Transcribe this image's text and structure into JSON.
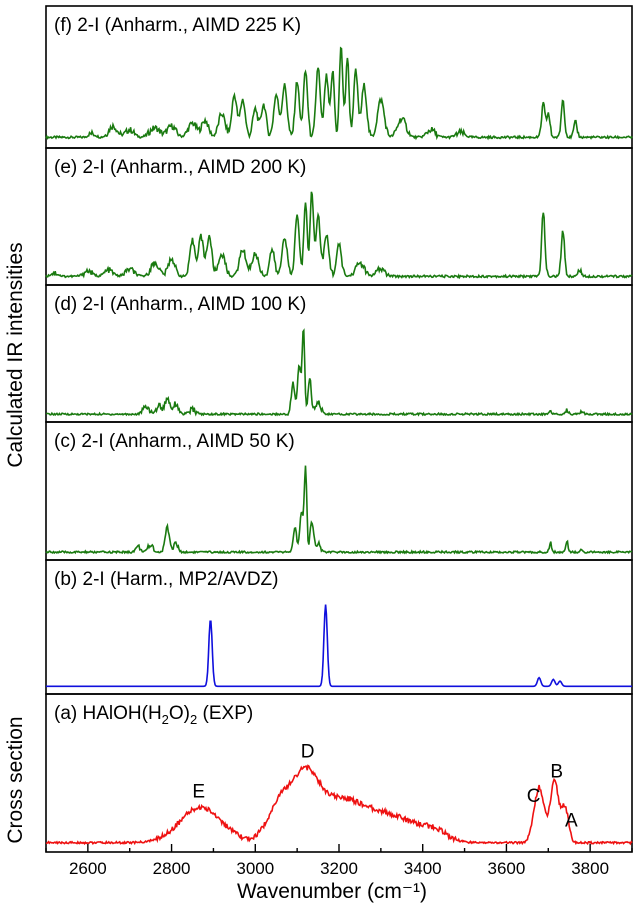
{
  "chart_data": {
    "type": "line",
    "xlabel": "Wavenumber (cm⁻¹)",
    "ylabel_top": "Calculated IR intensities",
    "ylabel_bottom": "Cross section",
    "xlim": [
      2500,
      3900
    ],
    "xticks": [
      2600,
      2800,
      3000,
      3200,
      3400,
      3600,
      3800
    ],
    "ytick_labels": "none",
    "panels": [
      {
        "id": "f",
        "label": "(f) 2-I (Anharm., AIMD 225 K)",
        "color": "#1a7a10",
        "baseline": 0.05,
        "peaks": [
          [
            2610,
            0.04,
            8
          ],
          [
            2660,
            0.12,
            10
          ],
          [
            2700,
            0.08,
            10
          ],
          [
            2760,
            0.1,
            12
          ],
          [
            2800,
            0.12,
            10
          ],
          [
            2850,
            0.15,
            10
          ],
          [
            2880,
            0.18,
            8
          ],
          [
            2920,
            0.25,
            8
          ],
          [
            2950,
            0.45,
            6
          ],
          [
            2970,
            0.4,
            6
          ],
          [
            3000,
            0.3,
            6
          ],
          [
            3020,
            0.35,
            6
          ],
          [
            3050,
            0.45,
            6
          ],
          [
            3070,
            0.55,
            6
          ],
          [
            3100,
            0.6,
            5
          ],
          [
            3120,
            0.7,
            5
          ],
          [
            3150,
            0.75,
            5
          ],
          [
            3170,
            0.65,
            5
          ],
          [
            3185,
            0.7,
            4
          ],
          [
            3205,
            0.98,
            4
          ],
          [
            3220,
            0.85,
            4
          ],
          [
            3240,
            0.7,
            5
          ],
          [
            3260,
            0.55,
            6
          ],
          [
            3300,
            0.4,
            8
          ],
          [
            3350,
            0.2,
            10
          ],
          [
            3420,
            0.08,
            10
          ],
          [
            3490,
            0.05,
            10
          ],
          [
            3688,
            0.35,
            4
          ],
          [
            3700,
            0.25,
            4
          ],
          [
            3735,
            0.4,
            4
          ],
          [
            3765,
            0.15,
            4
          ]
        ]
      },
      {
        "id": "e",
        "label": "(e) 2-I (Anharm., AIMD 200 K)",
        "color": "#1a7a10",
        "baseline": 0.03,
        "peaks": [
          [
            2520,
            0.04,
            8
          ],
          [
            2600,
            0.06,
            10
          ],
          [
            2650,
            0.07,
            10
          ],
          [
            2700,
            0.08,
            10
          ],
          [
            2760,
            0.15,
            10
          ],
          [
            2800,
            0.2,
            8
          ],
          [
            2850,
            0.4,
            6
          ],
          [
            2870,
            0.45,
            6
          ],
          [
            2890,
            0.45,
            6
          ],
          [
            2920,
            0.25,
            8
          ],
          [
            2970,
            0.3,
            8
          ],
          [
            3000,
            0.25,
            8
          ],
          [
            3040,
            0.3,
            6
          ],
          [
            3070,
            0.45,
            6
          ],
          [
            3100,
            0.7,
            5
          ],
          [
            3120,
            0.85,
            4
          ],
          [
            3135,
            0.95,
            4
          ],
          [
            3150,
            0.7,
            5
          ],
          [
            3170,
            0.45,
            6
          ],
          [
            3200,
            0.35,
            6
          ],
          [
            3250,
            0.15,
            10
          ],
          [
            3300,
            0.08,
            10
          ],
          [
            3688,
            0.72,
            4
          ],
          [
            3735,
            0.5,
            4
          ],
          [
            3775,
            0.08,
            4
          ]
        ]
      },
      {
        "id": "d",
        "label": "(d) 2-I (Anharm., AIMD 100 K)",
        "color": "#1a7a10",
        "baseline": 0.02,
        "peaks": [
          [
            2740,
            0.08,
            8
          ],
          [
            2770,
            0.1,
            6
          ],
          [
            2790,
            0.18,
            6
          ],
          [
            2810,
            0.12,
            6
          ],
          [
            2850,
            0.05,
            8
          ],
          [
            3090,
            0.35,
            4
          ],
          [
            3105,
            0.55,
            4
          ],
          [
            3115,
            0.95,
            3
          ],
          [
            3130,
            0.4,
            4
          ],
          [
            3150,
            0.15,
            6
          ],
          [
            3705,
            0.03,
            4
          ],
          [
            3745,
            0.05,
            4
          ],
          [
            3780,
            0.03,
            4
          ]
        ]
      },
      {
        "id": "c",
        "label": "(c) 2-I (Anharm., AIMD 50 K)",
        "color": "#1a7a10",
        "baseline": 0.02,
        "peaks": [
          [
            2720,
            0.06,
            6
          ],
          [
            2750,
            0.08,
            6
          ],
          [
            2790,
            0.28,
            5
          ],
          [
            2810,
            0.1,
            5
          ],
          [
            3095,
            0.25,
            4
          ],
          [
            3110,
            0.45,
            4
          ],
          [
            3120,
            0.95,
            3
          ],
          [
            3135,
            0.35,
            4
          ],
          [
            3150,
            0.1,
            6
          ],
          [
            3705,
            0.1,
            3
          ],
          [
            3745,
            0.1,
            3
          ],
          [
            3780,
            0.03,
            3
          ]
        ]
      },
      {
        "id": "b",
        "label": "(b) 2-I (Harm., MP2/AVDZ)",
        "color": "#1010dd",
        "baseline": 0.02,
        "peaks": [
          [
            2893,
            0.78,
            4
          ],
          [
            3168,
            0.95,
            4
          ],
          [
            3678,
            0.1,
            4
          ],
          [
            3712,
            0.08,
            4
          ],
          [
            3728,
            0.06,
            4
          ]
        ]
      },
      {
        "id": "a",
        "label": "(a) HAlOH(H₂O)₂ (EXP)",
        "label_main": "(a) HAlOH(H",
        "label_sub1": "2",
        "label_mid": "O)",
        "label_sub2": "2",
        "label_end": " (EXP)",
        "color": "#ee1111",
        "baseline": 0.03,
        "peaks": [
          [
            2870,
            0.32,
            50
          ],
          [
            3060,
            0.35,
            30
          ],
          [
            3120,
            0.48,
            30
          ],
          [
            3200,
            0.38,
            60
          ],
          [
            3330,
            0.22,
            60
          ],
          [
            3430,
            0.08,
            30
          ],
          [
            3678,
            0.5,
            12
          ],
          [
            3715,
            0.55,
            10
          ],
          [
            3740,
            0.32,
            8
          ]
        ],
        "annotations": [
          {
            "text": "E",
            "x": 2865
          },
          {
            "text": "D",
            "x": 3125
          },
          {
            "text": "C",
            "x": 3665
          },
          {
            "text": "B",
            "x": 3720
          },
          {
            "text": "A",
            "x": 3755
          }
        ]
      }
    ]
  }
}
